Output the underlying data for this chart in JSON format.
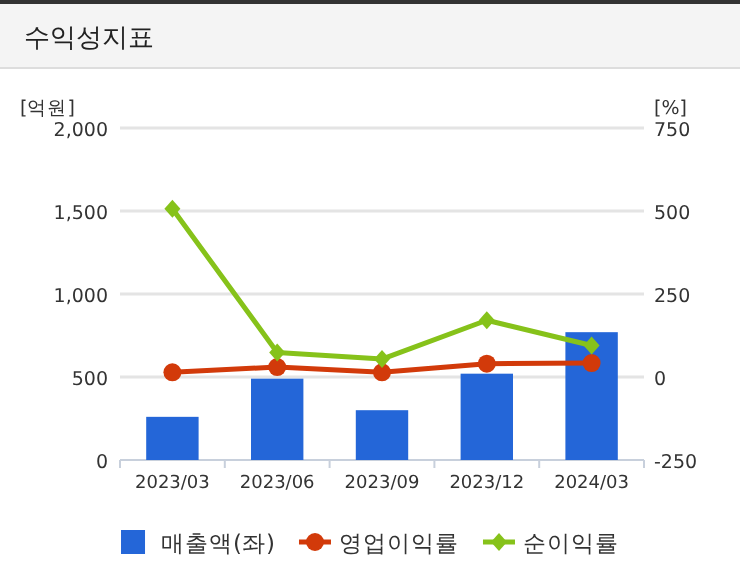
{
  "chart_data": {
    "type": "bar",
    "title": "수익성지표",
    "ylabel": "[억원]",
    "y2label": "[%]",
    "categories": [
      "2023/03",
      "2023/06",
      "2023/09",
      "2023/12",
      "2024/03"
    ],
    "series": [
      {
        "name": "매출액(좌)",
        "color": "#2466d8",
        "values": [
          260,
          490,
          300,
          520,
          770
        ]
      },
      {
        "name": "영업이익률",
        "type": "line",
        "axis": "y2",
        "color": "#d23a0a",
        "marker": "circle",
        "values": [
          14,
          30,
          14,
          40,
          42
        ]
      },
      {
        "name": "순이익률",
        "type": "line",
        "axis": "y2",
        "color": "#86c21a",
        "marker": "diamond",
        "values": [
          507,
          74,
          54,
          171,
          95
        ]
      }
    ],
    "ylim": [
      0,
      2000
    ],
    "yticks": [
      0,
      {
        "value": 500,
        "label": "500"
      },
      {
        "value": 1000,
        "label": "1,000"
      },
      {
        "value": 1500,
        "label": "1,500"
      },
      {
        "value": 2000,
        "label": "2,000"
      }
    ],
    "y2lim": [
      -250,
      750
    ],
    "y2ticks": [
      -250,
      0,
      250,
      500,
      750
    ],
    "grid": "y",
    "legend": "bottom"
  }
}
